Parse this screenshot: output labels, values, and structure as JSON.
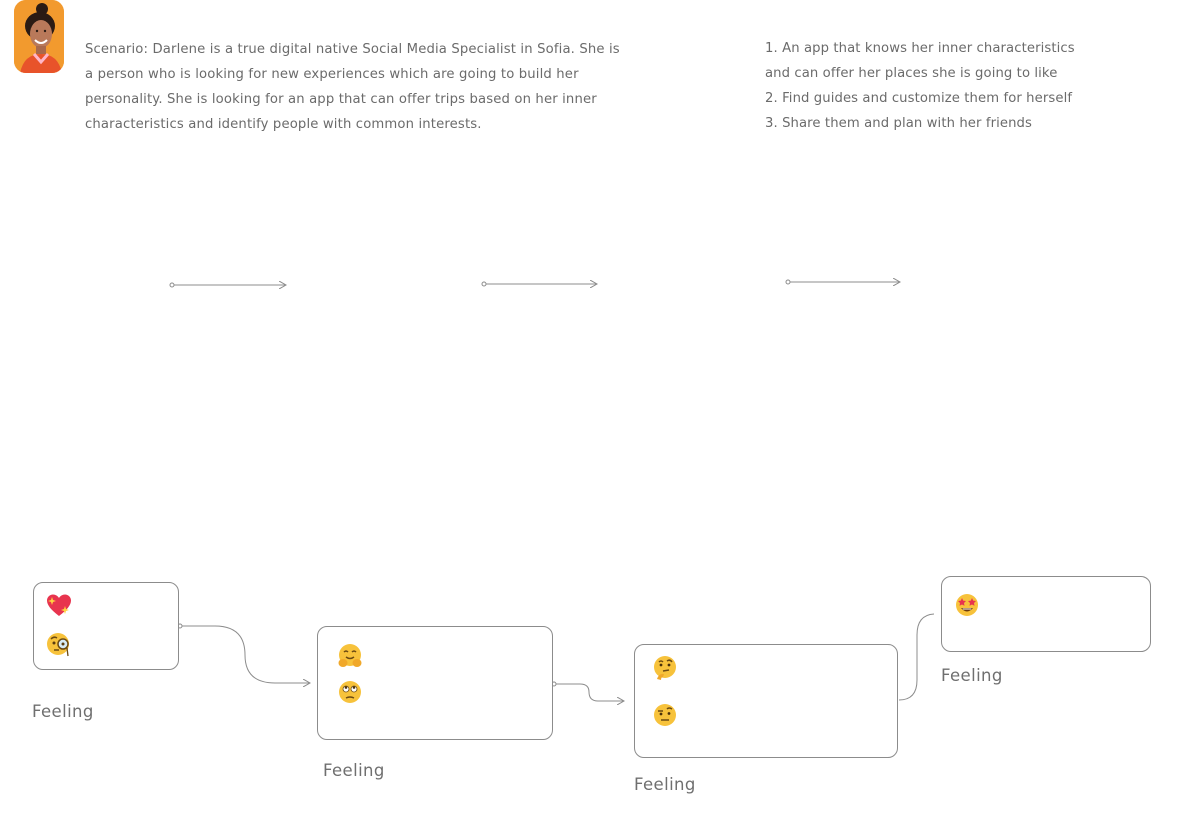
{
  "persona": {
    "avatar_icon": "woman-avatar-icon",
    "scenario": "Scenario: Darlene is a true digital native Social Media Specialist in Sofia. She is a person who is looking for new experiences which are going to build her personality. She is looking for an app that can offer trips based on her inner characteristics and identify people with common interests."
  },
  "goals": {
    "line1": "1. An app that knows her inner characteristics",
    "line2": "and can offer her places she is going to like",
    "line3": "2. Find guides and customize them for herself",
    "line4": "3. Share them and plan with her friends"
  },
  "stages": [
    {
      "feeling_label": "Feeling",
      "emojis": [
        "sparkling-heart-icon",
        "face-with-monocle-icon"
      ]
    },
    {
      "feeling_label": "Feeling",
      "emojis": [
        "hugging-face-icon",
        "face-with-rolling-eyes-icon"
      ]
    },
    {
      "feeling_label": "Feeling",
      "emojis": [
        "thinking-face-icon",
        "face-with-raised-eyebrow-icon"
      ]
    },
    {
      "feeling_label": "Feeling",
      "emojis": [
        "star-struck-icon"
      ]
    }
  ],
  "colors": {
    "line": "#8c8c8c",
    "text": "#6b6b6b",
    "avatar_bg": "#f29a2e",
    "emoji_face": "#f7c23b",
    "heart": "#e8344e"
  }
}
